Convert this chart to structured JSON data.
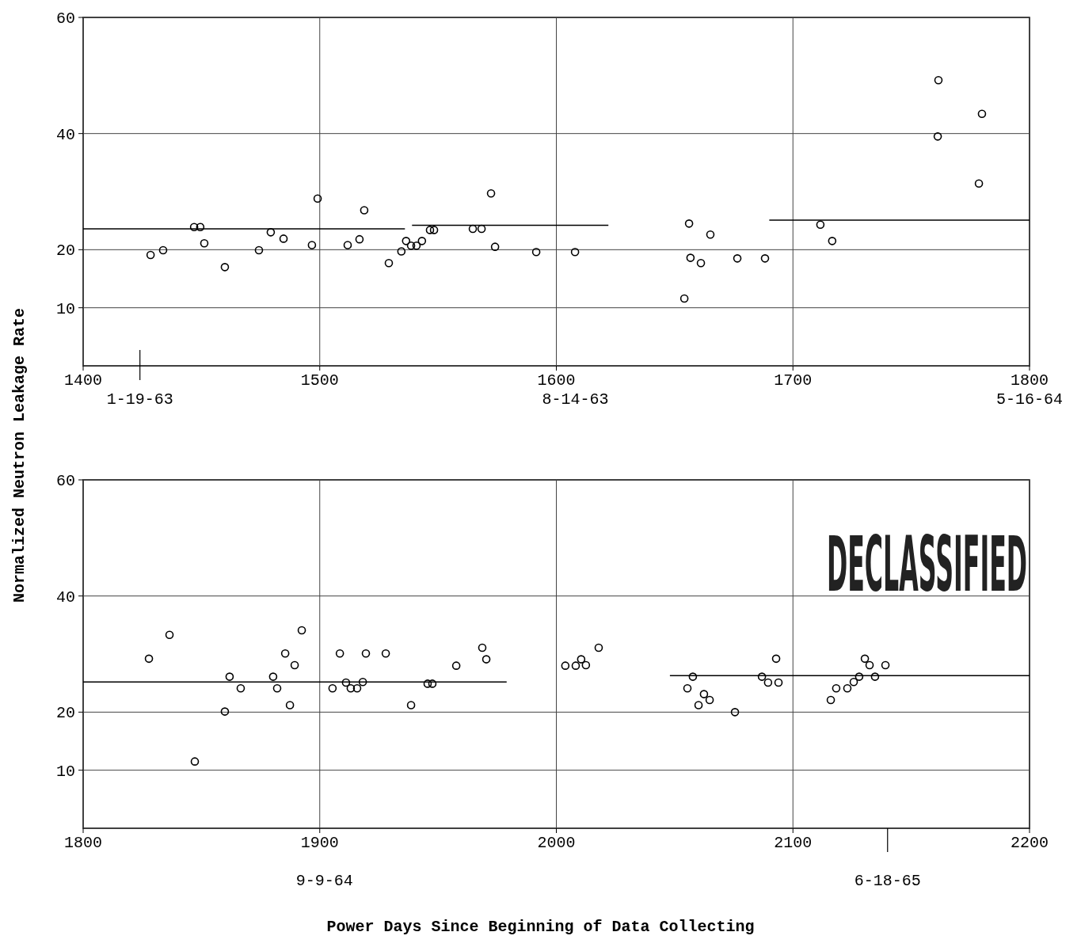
{
  "chart_data": [
    {
      "type": "scatter",
      "ylabel": "Normalized Neutron Leakage Rate",
      "xlim": [
        1400,
        1800
      ],
      "xticks": [
        1400,
        1500,
        1600,
        1700,
        1800
      ],
      "ylim": [
        0,
        60
      ],
      "yticks": [
        10,
        20,
        40,
        60
      ],
      "grid": true,
      "annotations": [
        "1-19-63",
        "8-14-63",
        "5-16-64"
      ],
      "series": [
        {
          "marker": "circle",
          "color": "#000000",
          "x": [
            1428.5,
            1433.8,
            1446.9,
            1449.5,
            1451.2,
            1459.9,
            1474.3,
            1479.3,
            1484.7,
            1496.7,
            1499.1,
            1511.8,
            1516.8,
            1518.8,
            1529.2,
            1534.5,
            1536.5,
            1538.6,
            1540.9,
            1543.2,
            1546.6,
            1548.3,
            1564.7,
            1568.4,
            1572.4,
            1574.1,
            1591.5,
            1607.9,
            1654.1,
            1656.1,
            1656.7,
            1661.1,
            1665.1,
            1676.5,
            1688.2,
            1711.6,
            1716.6,
            1761.2,
            1761.5,
            1779.9,
            1778.6
          ],
          "values": [
            19.1,
            19.9,
            23.9,
            23.9,
            21.1,
            17,
            19.9,
            23,
            21.9,
            20.8,
            28.8,
            20.8,
            21.8,
            26.8,
            17.7,
            19.7,
            21.5,
            20.7,
            20.7,
            21.5,
            23.4,
            23.4,
            23.6,
            23.6,
            29.7,
            20.5,
            19.6,
            19.6,
            11.6,
            24.5,
            18.6,
            17.7,
            22.6,
            18.5,
            18.5,
            24.3,
            21.5,
            39.5,
            49.2,
            43.4,
            31.4
          ]
        },
        {
          "type": "line",
          "color": "#000000",
          "x": [
            1400,
            1536
          ],
          "values": [
            23.6,
            23.6
          ]
        },
        {
          "type": "line",
          "color": "#000000",
          "x": [
            1539,
            1622
          ],
          "values": [
            24.2,
            24.2
          ]
        },
        {
          "type": "line",
          "color": "#000000",
          "x": [
            1690,
            1800
          ],
          "values": [
            25.1,
            25.1
          ]
        }
      ]
    },
    {
      "type": "scatter",
      "xlabel": "Power Days Since Beginning of Data Collecting",
      "xlim": [
        1800,
        2200
      ],
      "xticks": [
        1800,
        1900,
        2000,
        2100,
        2200
      ],
      "ylim": [
        0,
        60
      ],
      "yticks": [
        10,
        20,
        40,
        60
      ],
      "grid": true,
      "annotations": [
        "9-9-64",
        "6-18-65",
        "DECLASSIFIED"
      ],
      "series": [
        {
          "marker": "circle",
          "color": "#000000",
          "x": [
            1827.8,
            1836.5,
            1847.2,
            1859.9,
            1861.9,
            1866.6,
            1880.3,
            1882,
            1885.4,
            1887.4,
            1889.4,
            1892.4,
            1905.4,
            1908.5,
            1911.1,
            1913.1,
            1915.8,
            1918.2,
            1919.5,
            1927.9,
            1938.6,
            1945.6,
            1947.6,
            1957.7,
            1968.7,
            1970.4,
            2003.8,
            2008.2,
            2010.5,
            2012.5,
            2017.9,
            2055.4,
            2057.7,
            2060.1,
            2062.4,
            2064.8,
            2075.5,
            2086.9,
            2089.5,
            2092.9,
            2093.9,
            2116,
            2118.3,
            2123,
            2125.7,
            2128,
            2130.4,
            2132.4,
            2134.7,
            2139.1
          ],
          "values": [
            29.2,
            33.3,
            11.5,
            20.1,
            26.1,
            24.1,
            26.1,
            24.1,
            30.1,
            21.2,
            28.1,
            34.1,
            24.1,
            30.1,
            25.1,
            24.1,
            24.1,
            25.2,
            30.1,
            30.1,
            21.2,
            24.9,
            24.9,
            28,
            31.1,
            29.1,
            28,
            28,
            29.1,
            28.1,
            31.1,
            24.1,
            26.1,
            21.2,
            23.1,
            22.1,
            20,
            26.1,
            25.1,
            29.2,
            25.1,
            22.1,
            24.1,
            24.1,
            25.2,
            26.1,
            29.2,
            28.1,
            26.1,
            28.1
          ]
        },
        {
          "type": "line",
          "color": "#000000",
          "x": [
            1800,
            1979
          ],
          "values": [
            25.2,
            25.2
          ]
        },
        {
          "type": "line",
          "color": "#000000",
          "x": [
            2048,
            2200
          ],
          "values": [
            26.3,
            26.3
          ]
        }
      ]
    }
  ]
}
